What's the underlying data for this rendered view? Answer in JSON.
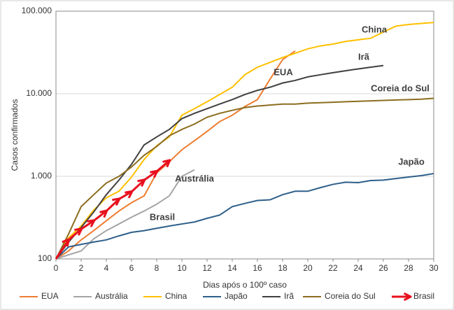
{
  "chart_data": {
    "type": "line",
    "xlabel": "Dias após o 100º caso",
    "ylabel": "Casos confirmados",
    "x": [
      0,
      1,
      2,
      3,
      4,
      5,
      6,
      7,
      8,
      9,
      10,
      11,
      12,
      13,
      14,
      15,
      16,
      17,
      18,
      19,
      20,
      21,
      22,
      23,
      24,
      25,
      26,
      27,
      28,
      29,
      30
    ],
    "series": [
      {
        "name": "EUA",
        "color": "#ed7d31",
        "values": [
          100,
          125,
          170,
          220,
          290,
          380,
          480,
          580,
          1100,
          1500,
          2100,
          2700,
          3500,
          4600,
          5500,
          7000,
          8500,
          15000,
          26000,
          33000,
          null,
          null,
          null,
          null,
          null,
          null,
          null,
          null,
          null,
          null,
          null
        ]
      },
      {
        "name": "Austrália",
        "color": "#a5a5a5",
        "values": [
          100,
          112,
          125,
          175,
          220,
          265,
          320,
          380,
          460,
          580,
          1000,
          1200,
          null,
          null,
          null,
          null,
          null,
          null,
          null,
          null,
          null,
          null,
          null,
          null,
          null,
          null,
          null,
          null,
          null,
          null,
          null
        ]
      },
      {
        "name": "China",
        "color": "#ffc000",
        "values": [
          100,
          180,
          250,
          390,
          550,
          660,
          980,
          1600,
          2350,
          3000,
          5500,
          6600,
          8000,
          9800,
          12000,
          17000,
          21000,
          24000,
          27500,
          31000,
          35000,
          38000,
          40000,
          43000,
          45000,
          47000,
          56000,
          66000,
          69000,
          71000,
          73000
        ]
      },
      {
        "name": "Japão",
        "color": "#2e5f8a",
        "values": [
          100,
          140,
          150,
          160,
          170,
          190,
          210,
          220,
          235,
          250,
          265,
          280,
          310,
          340,
          430,
          470,
          510,
          520,
          600,
          660,
          660,
          730,
          800,
          850,
          840,
          890,
          900,
          940,
          980,
          1020,
          1080
        ]
      },
      {
        "name": "Irã",
        "color": "#404040",
        "values": [
          100,
          160,
          240,
          370,
          600,
          900,
          1400,
          2400,
          3000,
          3700,
          5000,
          5800,
          6600,
          7500,
          8500,
          9800,
          11000,
          12000,
          13500,
          14500,
          16000,
          17000,
          18000,
          19000,
          20000,
          21000,
          22000,
          null,
          null,
          null,
          null
        ]
      },
      {
        "name": "Coreia do Sul",
        "color": "#8c6d1f",
        "values": [
          100,
          200,
          430,
          600,
          830,
          1000,
          1300,
          1800,
          2300,
          3100,
          3700,
          4300,
          5200,
          5800,
          6300,
          6800,
          7100,
          7300,
          7500,
          7500,
          7700,
          7800,
          7900,
          8000,
          8100,
          8200,
          8300,
          8400,
          8500,
          8600,
          8800
        ]
      },
      {
        "name": "Brasil",
        "color": "#e8101e",
        "values": [
          100,
          170,
          230,
          290,
          380,
          530,
          650,
          900,
          1150,
          1550,
          null,
          null,
          null,
          null,
          null,
          null,
          null,
          null,
          null,
          null,
          null,
          null,
          null,
          null,
          null,
          null,
          null,
          null,
          null,
          null,
          null
        ]
      }
    ],
    "xlim": [
      0,
      30
    ],
    "xticks": [
      0,
      2,
      4,
      6,
      8,
      10,
      12,
      14,
      16,
      18,
      20,
      22,
      24,
      26,
      28,
      30
    ],
    "ylim": [
      100,
      100000
    ],
    "log_y": true,
    "yticks": [
      100,
      {
        "value": 1000,
        "label": "1.000"
      },
      {
        "value": 10000,
        "label": "10.000"
      },
      {
        "value": 100000,
        "label": "100.000"
      }
    ],
    "grid": true,
    "legend": "bottom"
  }
}
